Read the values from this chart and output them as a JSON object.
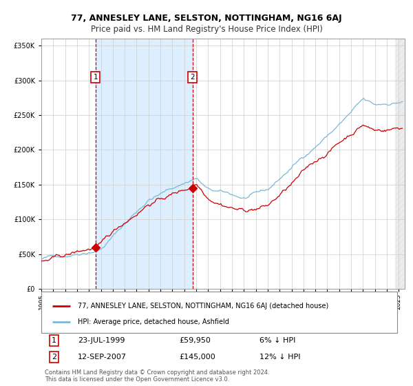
{
  "title": "77, ANNESLEY LANE, SELSTON, NOTTINGHAM, NG16 6AJ",
  "subtitle": "Price paid vs. HM Land Registry's House Price Index (HPI)",
  "ytick_vals": [
    0,
    50000,
    100000,
    150000,
    200000,
    250000,
    300000,
    350000
  ],
  "ylim": [
    0,
    360000
  ],
  "xlim_start": 1995.0,
  "xlim_end": 2025.5,
  "purchase1_date": 1999.55,
  "purchase1_price": 59950,
  "purchase1_label": "1",
  "purchase2_date": 2007.7,
  "purchase2_price": 145000,
  "purchase2_label": "2",
  "hpi_color": "#7ab8d9",
  "price_color": "#cc0000",
  "bg_highlight_color": "#ddeeff",
  "shaded_region_start": 1999.55,
  "shaded_region_end": 2007.7,
  "legend_entry1": "77, ANNESLEY LANE, SELSTON, NOTTINGHAM, NG16 6AJ (detached house)",
  "legend_entry2": "HPI: Average price, detached house, Ashfield",
  "annotation1_date": "23-JUL-1999",
  "annotation1_price": "£59,950",
  "annotation1_hpi": "6% ↓ HPI",
  "annotation2_date": "12-SEP-2007",
  "annotation2_price": "£145,000",
  "annotation2_hpi": "12% ↓ HPI",
  "footer": "Contains HM Land Registry data © Crown copyright and database right 2024.\nThis data is licensed under the Open Government Licence v3.0.",
  "title_fontsize": 9,
  "subtitle_fontsize": 8.5,
  "tick_fontsize": 7,
  "grid_color": "#cccccc"
}
